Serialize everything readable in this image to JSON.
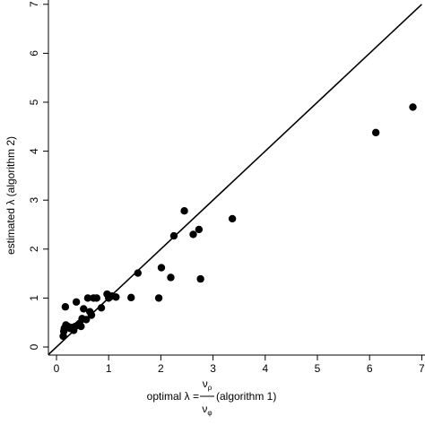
{
  "chart_data": {
    "type": "scatter",
    "xlabel": {
      "prefix": "optimal λ =",
      "numerator": "ν",
      "numerator_sub": "ρ",
      "denominator": "ν",
      "denominator_sub": "φ",
      "suffix": "(algorithm 1)"
    },
    "ylabel": "estimated λ (algorithm 2)",
    "xlim": [
      -0.15,
      7.0
    ],
    "ylim": [
      -0.15,
      7.0
    ],
    "xticks": [
      0,
      1,
      2,
      3,
      4,
      5,
      6,
      7
    ],
    "yticks": [
      0,
      1,
      2,
      3,
      4,
      5,
      6,
      7
    ],
    "grid": false,
    "reference_line": {
      "slope": 1,
      "intercept": 0
    },
    "points": [
      {
        "x": 0.13,
        "y": 0.22
      },
      {
        "x": 0.14,
        "y": 0.32
      },
      {
        "x": 0.15,
        "y": 0.38
      },
      {
        "x": 0.18,
        "y": 0.45
      },
      {
        "x": 0.17,
        "y": 0.82
      },
      {
        "x": 0.22,
        "y": 0.42
      },
      {
        "x": 0.26,
        "y": 0.38
      },
      {
        "x": 0.3,
        "y": 0.4
      },
      {
        "x": 0.33,
        "y": 0.34
      },
      {
        "x": 0.36,
        "y": 0.42
      },
      {
        "x": 0.38,
        "y": 0.92
      },
      {
        "x": 0.41,
        "y": 0.45
      },
      {
        "x": 0.44,
        "y": 0.48
      },
      {
        "x": 0.47,
        "y": 0.42
      },
      {
        "x": 0.49,
        "y": 0.58
      },
      {
        "x": 0.52,
        "y": 0.78
      },
      {
        "x": 0.57,
        "y": 0.56
      },
      {
        "x": 0.6,
        "y": 1.0
      },
      {
        "x": 0.64,
        "y": 0.72
      },
      {
        "x": 0.67,
        "y": 0.65
      },
      {
        "x": 0.71,
        "y": 1.0
      },
      {
        "x": 0.77,
        "y": 1.0
      },
      {
        "x": 0.86,
        "y": 0.8
      },
      {
        "x": 0.97,
        "y": 1.08
      },
      {
        "x": 1.0,
        "y": 1.0
      },
      {
        "x": 1.06,
        "y": 1.04
      },
      {
        "x": 1.14,
        "y": 1.02
      },
      {
        "x": 1.43,
        "y": 1.01
      },
      {
        "x": 1.56,
        "y": 1.51
      },
      {
        "x": 1.96,
        "y": 1.0
      },
      {
        "x": 2.01,
        "y": 1.62
      },
      {
        "x": 2.19,
        "y": 1.42
      },
      {
        "x": 2.25,
        "y": 2.27
      },
      {
        "x": 2.45,
        "y": 2.78
      },
      {
        "x": 2.62,
        "y": 2.3
      },
      {
        "x": 2.73,
        "y": 2.4
      },
      {
        "x": 2.76,
        "y": 1.39
      },
      {
        "x": 3.37,
        "y": 2.62
      },
      {
        "x": 6.12,
        "y": 4.38
      },
      {
        "x": 6.83,
        "y": 4.9
      }
    ]
  }
}
